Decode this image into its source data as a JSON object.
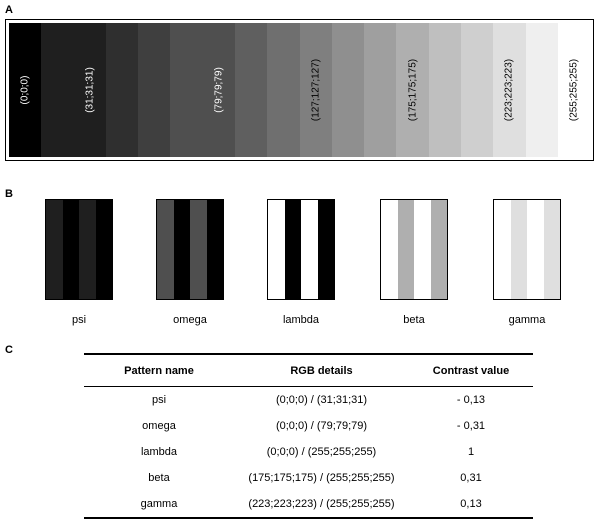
{
  "panels": {
    "a": "A",
    "b": "B",
    "c": "C"
  },
  "gradient": [
    {
      "color": "#000000",
      "label": "(0;0;0)"
    },
    {
      "color": "#1f1f1f",
      "label": ""
    },
    {
      "color": "#1f1f1f",
      "label": "(31;31;31)"
    },
    {
      "color": "#2f2f2f",
      "label": ""
    },
    {
      "color": "#3f3f3f",
      "label": ""
    },
    {
      "color": "#4f4f4f",
      "label": ""
    },
    {
      "color": "#4f4f4f",
      "label": "(79;79;79)"
    },
    {
      "color": "#5f5f5f",
      "label": ""
    },
    {
      "color": "#6f6f6f",
      "label": ""
    },
    {
      "color": "#7f7f7f",
      "label": "(127;127;127)"
    },
    {
      "color": "#8f8f8f",
      "label": ""
    },
    {
      "color": "#9f9f9f",
      "label": ""
    },
    {
      "color": "#afafaf",
      "label": "(175;175;175)"
    },
    {
      "color": "#bfbfbf",
      "label": ""
    },
    {
      "color": "#cfcfcf",
      "label": ""
    },
    {
      "color": "#dfdfdf",
      "label": "(223;223;223)"
    },
    {
      "color": "#efefef",
      "label": ""
    },
    {
      "color": "#ffffff",
      "label": "(255;255;255)"
    }
  ],
  "patterns": [
    {
      "name": "psi",
      "color_a": "#000000",
      "color_b": "#1f1f1f"
    },
    {
      "name": "omega",
      "color_a": "#000000",
      "color_b": "#4f4f4f"
    },
    {
      "name": "lambda",
      "color_a": "#000000",
      "color_b": "#ffffff"
    },
    {
      "name": "beta",
      "color_a": "#afafaf",
      "color_b": "#ffffff"
    },
    {
      "name": "gamma",
      "color_a": "#dfdfdf",
      "color_b": "#ffffff"
    }
  ],
  "table": {
    "headers": [
      "Pattern name",
      "RGB details",
      "Contrast value"
    ],
    "rows": [
      [
        "psi",
        "(0;0;0) / (31;31;31)",
        "- 0,13"
      ],
      [
        "omega",
        "(0;0;0) / (79;79;79)",
        "- 0,31"
      ],
      [
        "lambda",
        "(0;0;0) / (255;255;255)",
        "1"
      ],
      [
        "beta",
        "(175;175;175) / (255;255;255)",
        "0,31"
      ],
      [
        "gamma",
        "(223;223;223) / (255;255;255)",
        "0,13"
      ]
    ]
  }
}
